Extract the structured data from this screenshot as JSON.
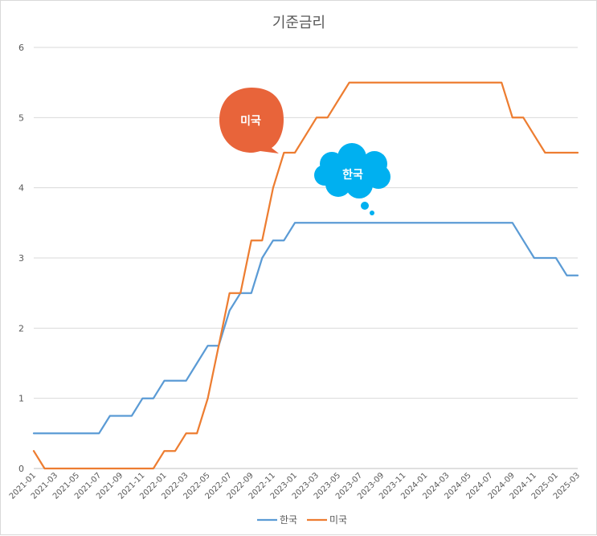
{
  "chart_data": {
    "type": "line",
    "title": "기준금리",
    "xlabel": "",
    "ylabel": "",
    "ylim": [
      0,
      6
    ],
    "yticks": [
      0,
      1,
      2,
      3,
      4,
      5,
      6
    ],
    "x": [
      "2021-01",
      "2021-02",
      "2021-03",
      "2021-04",
      "2021-05",
      "2021-06",
      "2021-07",
      "2021-08",
      "2021-09",
      "2021-10",
      "2021-11",
      "2021-12",
      "2022-01",
      "2022-02",
      "2022-03",
      "2022-04",
      "2022-05",
      "2022-06",
      "2022-07",
      "2022-08",
      "2022-09",
      "2022-10",
      "2022-11",
      "2022-12",
      "2023-01",
      "2023-02",
      "2023-03",
      "2023-04",
      "2023-05",
      "2023-06",
      "2023-07",
      "2023-08",
      "2023-09",
      "2023-10",
      "2023-11",
      "2023-12",
      "2024-01",
      "2024-02",
      "2024-03",
      "2024-04",
      "2024-05",
      "2024-06",
      "2024-07",
      "2024-08",
      "2024-09",
      "2024-10",
      "2024-11",
      "2024-12",
      "2025-01",
      "2025-02",
      "2025-03"
    ],
    "xtick_labels": [
      "2021-01",
      "2021-03",
      "2021-05",
      "2021-07",
      "2021-09",
      "2021-11",
      "2022-01",
      "2022-03",
      "2022-05",
      "2022-07",
      "2022-09",
      "2022-11",
      "2023-01",
      "2023-03",
      "2023-05",
      "2023-07",
      "2023-09",
      "2023-11",
      "2024-01",
      "2024-03",
      "2024-05",
      "2024-07",
      "2024-09",
      "2024-11",
      "2025-01",
      "2025-03"
    ],
    "series": [
      {
        "name": "한국",
        "color": "#5b9bd5",
        "values": [
          0.5,
          0.5,
          0.5,
          0.5,
          0.5,
          0.5,
          0.5,
          0.75,
          0.75,
          0.75,
          1.0,
          1.0,
          1.25,
          1.25,
          1.25,
          1.5,
          1.75,
          1.75,
          2.25,
          2.5,
          2.5,
          3.0,
          3.25,
          3.25,
          3.5,
          3.5,
          3.5,
          3.5,
          3.5,
          3.5,
          3.5,
          3.5,
          3.5,
          3.5,
          3.5,
          3.5,
          3.5,
          3.5,
          3.5,
          3.5,
          3.5,
          3.5,
          3.5,
          3.5,
          3.5,
          3.25,
          3.0,
          3.0,
          3.0,
          2.75,
          2.75
        ]
      },
      {
        "name": "미국",
        "color": "#ed7d31",
        "values": [
          0.25,
          0,
          0,
          0,
          0,
          0,
          0,
          0,
          0,
          0,
          0,
          0,
          0.25,
          0.25,
          0.5,
          0.5,
          1.0,
          1.75,
          2.5,
          2.5,
          3.25,
          3.25,
          4.0,
          4.5,
          4.5,
          4.75,
          5.0,
          5.0,
          5.25,
          5.5,
          5.5,
          5.5,
          5.5,
          5.5,
          5.5,
          5.5,
          5.5,
          5.5,
          5.5,
          5.5,
          5.5,
          5.5,
          5.5,
          5.5,
          5.0,
          5.0,
          4.75,
          4.5,
          4.5,
          4.5,
          4.5
        ]
      }
    ],
    "legend": "bottom",
    "grid": true,
    "annotations": [
      {
        "text": "미국",
        "shape": "speech-bubble",
        "color": "#e8643a"
      },
      {
        "text": "한국",
        "shape": "thought-cloud",
        "color": "#00b0f0"
      }
    ]
  }
}
